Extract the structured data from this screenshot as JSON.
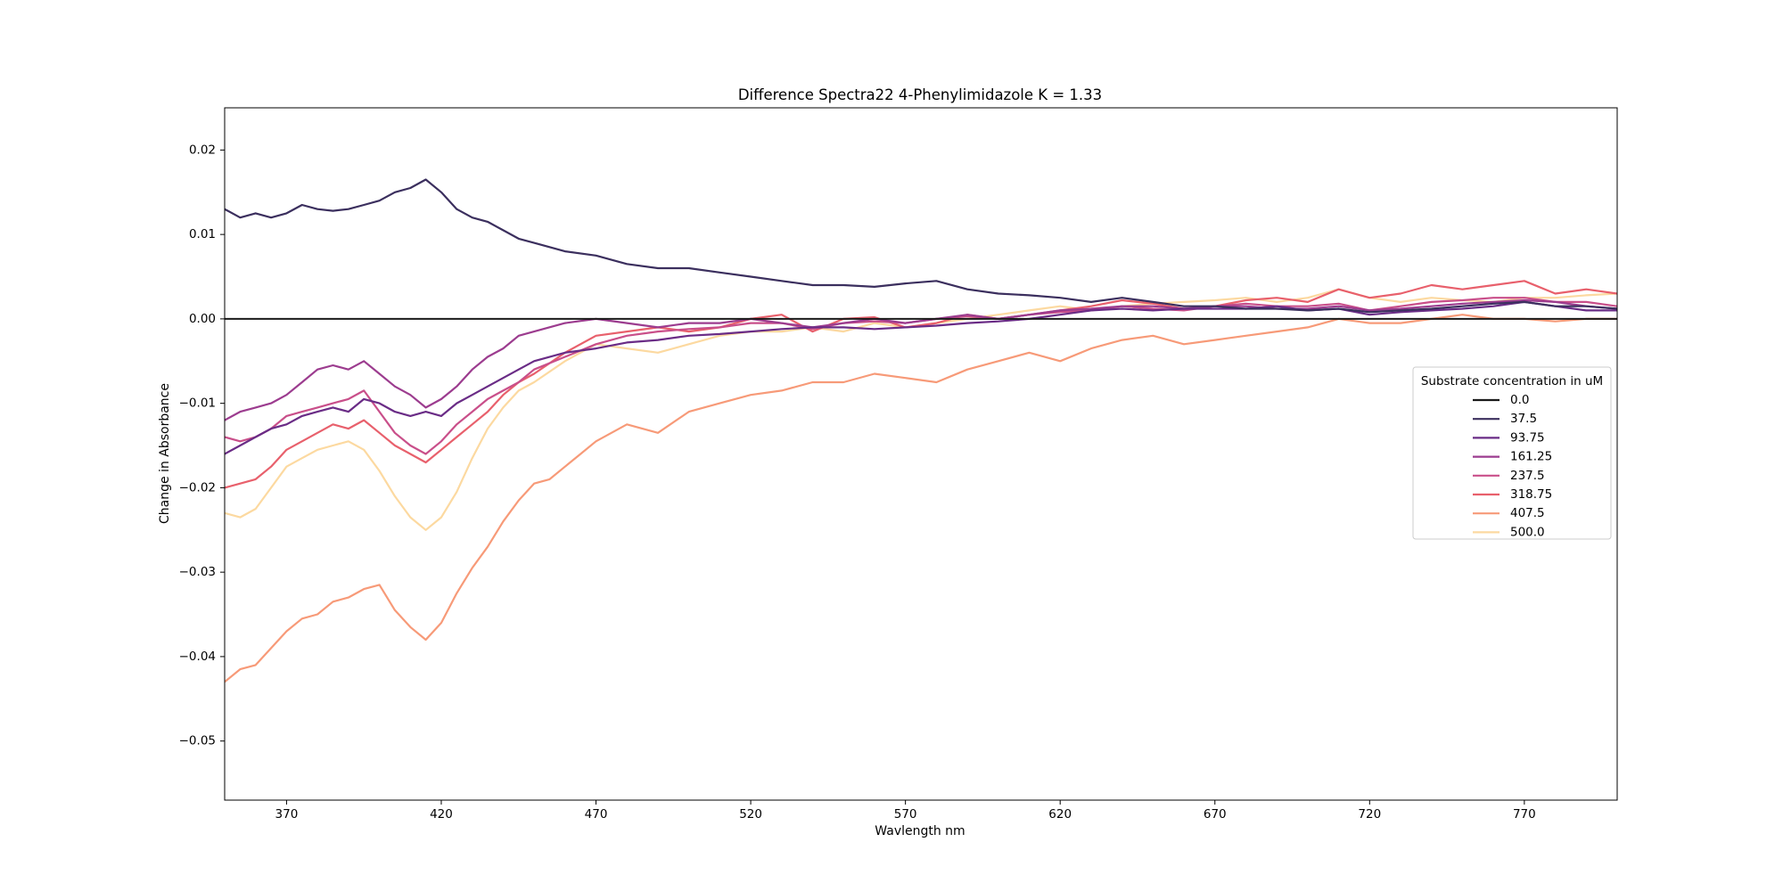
{
  "chart_data": {
    "type": "line",
    "title": "Difference Spectra22 4-Phenylimidazole  K = 1.33",
    "xlabel": "Wavlength nm",
    "ylabel": "Change in Absorbance",
    "xlim": [
      350,
      800
    ],
    "ylim": [
      -0.057,
      0.025
    ],
    "xticks": [
      370,
      420,
      470,
      520,
      570,
      620,
      670,
      720,
      770
    ],
    "yticks": [
      0.02,
      0.01,
      0.0,
      -0.01,
      -0.02,
      -0.03,
      -0.04,
      -0.05
    ],
    "ytick_labels": [
      "0.02",
      "0.01",
      "0.00",
      "−0.01",
      "−0.02",
      "−0.03",
      "−0.04",
      "−0.05"
    ],
    "grid": false,
    "legend": {
      "title": "Substrate concentration in uM",
      "placement": "center-right"
    },
    "series": [
      {
        "name": "0.0",
        "color": "#1a1a1a",
        "x": [
          350,
          800
        ],
        "y": [
          0.0,
          0.0
        ]
      },
      {
        "name": "37.5",
        "color": "#3b2f5e",
        "x": [
          350,
          355,
          360,
          365,
          370,
          375,
          380,
          385,
          390,
          395,
          400,
          405,
          410,
          415,
          420,
          425,
          430,
          435,
          440,
          445,
          450,
          460,
          470,
          480,
          490,
          500,
          510,
          520,
          530,
          540,
          550,
          560,
          570,
          580,
          590,
          600,
          610,
          620,
          630,
          640,
          650,
          660,
          670,
          680,
          690,
          700,
          710,
          720,
          730,
          740,
          750,
          760,
          770,
          780,
          790,
          800
        ],
        "y": [
          0.013,
          0.012,
          0.0125,
          0.012,
          0.0125,
          0.0135,
          0.013,
          0.0128,
          0.013,
          0.0135,
          0.014,
          0.015,
          0.0155,
          0.0165,
          0.015,
          0.013,
          0.012,
          0.0115,
          0.0105,
          0.0095,
          0.009,
          0.008,
          0.0075,
          0.0065,
          0.006,
          0.006,
          0.0055,
          0.005,
          0.0045,
          0.004,
          0.004,
          0.0038,
          0.0042,
          0.0045,
          0.0035,
          0.003,
          0.0028,
          0.0025,
          0.002,
          0.0025,
          0.002,
          0.0015,
          0.0015,
          0.0012,
          0.0012,
          0.001,
          0.0012,
          0.0008,
          0.001,
          0.0012,
          0.0015,
          0.0018,
          0.002,
          0.0015,
          0.0015,
          0.0012
        ]
      },
      {
        "name": "93.75",
        "color": "#6a2c86",
        "x": [
          350,
          355,
          360,
          365,
          370,
          375,
          380,
          385,
          390,
          395,
          400,
          405,
          410,
          415,
          420,
          425,
          430,
          435,
          440,
          445,
          450,
          460,
          470,
          480,
          490,
          500,
          510,
          520,
          530,
          540,
          550,
          560,
          570,
          580,
          590,
          600,
          610,
          620,
          630,
          640,
          650,
          660,
          670,
          680,
          690,
          700,
          710,
          720,
          730,
          740,
          750,
          760,
          770,
          780,
          790,
          800
        ],
        "y": [
          -0.016,
          -0.015,
          -0.014,
          -0.013,
          -0.0125,
          -0.0115,
          -0.011,
          -0.0105,
          -0.011,
          -0.0095,
          -0.01,
          -0.011,
          -0.0115,
          -0.011,
          -0.0115,
          -0.01,
          -0.009,
          -0.008,
          -0.007,
          -0.006,
          -0.005,
          -0.004,
          -0.0035,
          -0.0028,
          -0.0025,
          -0.002,
          -0.0018,
          -0.0015,
          -0.0012,
          -0.001,
          -0.001,
          -0.0012,
          -0.001,
          -0.0008,
          -0.0005,
          -0.0003,
          0.0,
          0.0005,
          0.001,
          0.0012,
          0.001,
          0.0012,
          0.0012,
          0.0012,
          0.0015,
          0.001,
          0.0012,
          0.0005,
          0.0008,
          0.001,
          0.0012,
          0.0015,
          0.002,
          0.0015,
          0.001,
          0.001
        ]
      },
      {
        "name": "161.25",
        "color": "#9c3c8f",
        "x": [
          350,
          355,
          360,
          365,
          370,
          375,
          380,
          385,
          390,
          395,
          400,
          405,
          410,
          415,
          420,
          425,
          430,
          435,
          440,
          445,
          450,
          460,
          470,
          480,
          490,
          500,
          510,
          520,
          530,
          540,
          550,
          560,
          570,
          580,
          590,
          600,
          610,
          620,
          630,
          640,
          650,
          660,
          670,
          680,
          690,
          700,
          710,
          720,
          730,
          740,
          750,
          760,
          770,
          780,
          790,
          800
        ],
        "y": [
          -0.012,
          -0.011,
          -0.0105,
          -0.01,
          -0.009,
          -0.0075,
          -0.006,
          -0.0055,
          -0.006,
          -0.005,
          -0.0065,
          -0.008,
          -0.009,
          -0.0105,
          -0.0095,
          -0.008,
          -0.006,
          -0.0045,
          -0.0035,
          -0.002,
          -0.0015,
          -0.0005,
          0.0,
          -0.0005,
          -0.001,
          -0.0005,
          -0.0005,
          0.0,
          -0.0005,
          -0.001,
          -0.0005,
          0.0,
          -0.0005,
          0.0,
          0.0005,
          0.0,
          0.0005,
          0.001,
          0.0012,
          0.0015,
          0.0015,
          0.0012,
          0.0015,
          0.0015,
          0.0012,
          0.0012,
          0.0015,
          0.001,
          0.0012,
          0.0015,
          0.0018,
          0.002,
          0.0022,
          0.002,
          0.0015,
          0.0012
        ]
      },
      {
        "name": "237.5",
        "color": "#c94f8a",
        "x": [
          350,
          355,
          360,
          365,
          370,
          375,
          380,
          385,
          390,
          395,
          400,
          405,
          410,
          415,
          420,
          425,
          430,
          435,
          440,
          445,
          450,
          460,
          470,
          480,
          490,
          500,
          510,
          520,
          530,
          540,
          550,
          560,
          570,
          580,
          590,
          600,
          610,
          620,
          630,
          640,
          650,
          660,
          670,
          680,
          690,
          700,
          710,
          720,
          730,
          740,
          750,
          760,
          770,
          780,
          790,
          800
        ],
        "y": [
          -0.014,
          -0.0145,
          -0.014,
          -0.013,
          -0.0115,
          -0.011,
          -0.0105,
          -0.01,
          -0.0095,
          -0.0085,
          -0.011,
          -0.0135,
          -0.015,
          -0.016,
          -0.0145,
          -0.0125,
          -0.011,
          -0.0095,
          -0.0085,
          -0.0075,
          -0.006,
          -0.0045,
          -0.003,
          -0.002,
          -0.0015,
          -0.0012,
          -0.001,
          -0.0005,
          -0.0005,
          -0.0012,
          -0.0005,
          -0.0003,
          -0.0005,
          0.0,
          0.0003,
          0.0,
          0.0005,
          0.0008,
          0.001,
          0.0015,
          0.0012,
          0.001,
          0.0015,
          0.0018,
          0.0015,
          0.0015,
          0.0018,
          0.001,
          0.0015,
          0.002,
          0.0022,
          0.0025,
          0.0025,
          0.002,
          0.002,
          0.0015
        ]
      },
      {
        "name": "318.75",
        "color": "#e8606c",
        "x": [
          350,
          355,
          360,
          365,
          370,
          375,
          380,
          385,
          390,
          395,
          400,
          405,
          410,
          415,
          420,
          425,
          430,
          435,
          440,
          445,
          450,
          460,
          470,
          480,
          490,
          500,
          510,
          520,
          530,
          540,
          550,
          560,
          570,
          580,
          590,
          600,
          610,
          620,
          630,
          640,
          650,
          660,
          670,
          680,
          690,
          700,
          710,
          720,
          730,
          740,
          750,
          760,
          770,
          780,
          790,
          800
        ],
        "y": [
          -0.02,
          -0.0195,
          -0.019,
          -0.0175,
          -0.0155,
          -0.0145,
          -0.0135,
          -0.0125,
          -0.013,
          -0.012,
          -0.0135,
          -0.015,
          -0.016,
          -0.017,
          -0.0155,
          -0.014,
          -0.0125,
          -0.011,
          -0.009,
          -0.0075,
          -0.0065,
          -0.004,
          -0.002,
          -0.0015,
          -0.001,
          -0.0015,
          -0.001,
          0.0,
          0.0005,
          -0.0015,
          0.0,
          0.0002,
          -0.001,
          -0.0005,
          0.0005,
          0.0,
          0.0005,
          0.001,
          0.0015,
          0.0022,
          0.0018,
          0.0012,
          0.0015,
          0.0022,
          0.0025,
          0.002,
          0.0035,
          0.0025,
          0.003,
          0.004,
          0.0035,
          0.004,
          0.0045,
          0.003,
          0.0035,
          0.003
        ]
      },
      {
        "name": "407.5",
        "color": "#f79a78",
        "x": [
          350,
          355,
          360,
          365,
          370,
          375,
          380,
          385,
          390,
          395,
          400,
          405,
          410,
          415,
          420,
          425,
          430,
          435,
          440,
          445,
          450,
          455,
          460,
          465,
          470,
          480,
          490,
          500,
          510,
          520,
          530,
          540,
          550,
          560,
          570,
          580,
          590,
          600,
          610,
          620,
          630,
          640,
          650,
          660,
          670,
          680,
          690,
          700,
          710,
          720,
          730,
          740,
          750,
          760,
          770,
          780,
          790,
          800
        ],
        "y": [
          -0.043,
          -0.0415,
          -0.041,
          -0.039,
          -0.037,
          -0.0355,
          -0.035,
          -0.0335,
          -0.033,
          -0.032,
          -0.0315,
          -0.0345,
          -0.0365,
          -0.038,
          -0.036,
          -0.0325,
          -0.0295,
          -0.027,
          -0.024,
          -0.0215,
          -0.0195,
          -0.019,
          -0.0175,
          -0.016,
          -0.0145,
          -0.0125,
          -0.0135,
          -0.011,
          -0.01,
          -0.009,
          -0.0085,
          -0.0075,
          -0.0075,
          -0.0065,
          -0.007,
          -0.0075,
          -0.006,
          -0.005,
          -0.004,
          -0.005,
          -0.0035,
          -0.0025,
          -0.002,
          -0.003,
          -0.0025,
          -0.002,
          -0.0015,
          -0.001,
          0.0,
          -0.0005,
          -0.0005,
          0.0,
          0.0005,
          0.0,
          0.0,
          -0.0003,
          0.0,
          0.0
        ]
      },
      {
        "name": "500.0",
        "color": "#fcd9a0",
        "x": [
          350,
          355,
          360,
          365,
          370,
          375,
          380,
          385,
          390,
          395,
          400,
          405,
          410,
          415,
          420,
          425,
          430,
          435,
          440,
          445,
          450,
          460,
          470,
          480,
          490,
          500,
          510,
          520,
          530,
          540,
          550,
          560,
          570,
          580,
          590,
          600,
          610,
          620,
          630,
          640,
          650,
          660,
          670,
          680,
          690,
          700,
          710,
          720,
          730,
          740,
          750,
          760,
          770,
          780,
          790,
          800
        ],
        "y": [
          -0.023,
          -0.0235,
          -0.0225,
          -0.02,
          -0.0175,
          -0.0165,
          -0.0155,
          -0.015,
          -0.0145,
          -0.0155,
          -0.018,
          -0.021,
          -0.0235,
          -0.025,
          -0.0235,
          -0.0205,
          -0.0165,
          -0.013,
          -0.0105,
          -0.0085,
          -0.0075,
          -0.005,
          -0.003,
          -0.0035,
          -0.004,
          -0.003,
          -0.002,
          -0.0015,
          -0.0015,
          -0.001,
          -0.0015,
          -0.0005,
          -0.001,
          -0.0005,
          0.0,
          0.0005,
          0.001,
          0.0015,
          0.001,
          0.0015,
          0.0018,
          0.002,
          0.0022,
          0.0025,
          0.002,
          0.0025,
          0.0035,
          0.0025,
          0.002,
          0.0025,
          0.0022,
          0.002,
          0.0025,
          0.0025,
          0.0028,
          0.003
        ]
      }
    ]
  }
}
